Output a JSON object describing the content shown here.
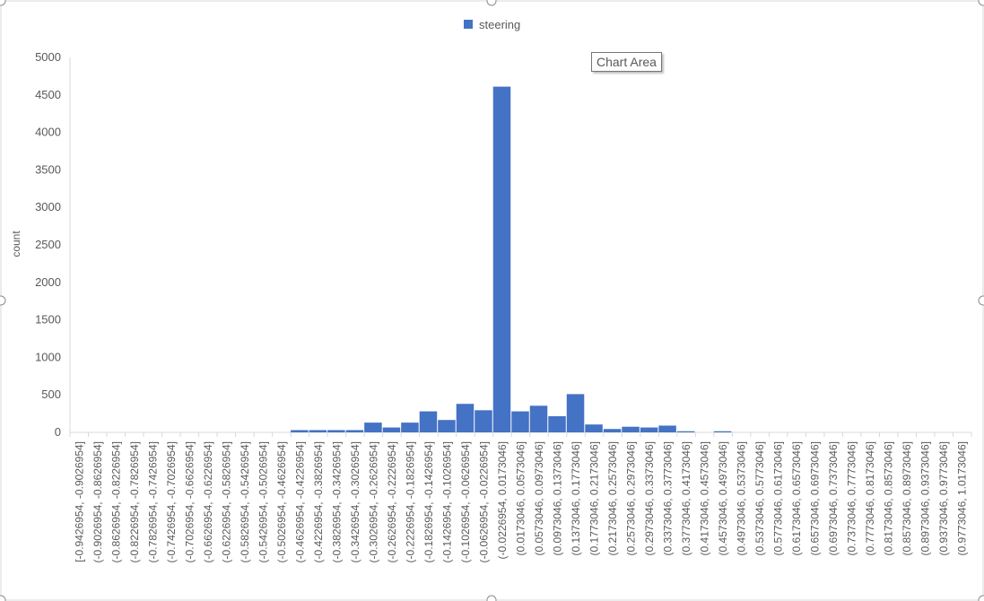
{
  "tooltip": "Chart Area",
  "colors": {
    "bar": "#4472C4",
    "axis": "#D9D9D9",
    "text": "#595959"
  },
  "chart_data": {
    "type": "bar",
    "xlabel": "",
    "ylabel": "count",
    "ylim": [
      0,
      5000
    ],
    "yticks": [
      0,
      500,
      1000,
      1500,
      2000,
      2500,
      3000,
      3500,
      4000,
      4500,
      5000
    ],
    "grid": false,
    "legend_position": "top",
    "categories": [
      "[-0.9426954, -0.9026954]",
      "(-0.9026954, -0.8626954]",
      "(-0.8626954, -0.8226954]",
      "(-0.8226954, -0.7826954]",
      "(-0.7826954, -0.7426954]",
      "(-0.7426954, -0.7026954]",
      "(-0.7026954, -0.6626954]",
      "(-0.6626954, -0.6226954]",
      "(-0.6226954, -0.5826954]",
      "(-0.5826954, -0.5426954]",
      "(-0.5426954, -0.5026954]",
      "(-0.5026954, -0.4626954]",
      "(-0.4626954, -0.4226954]",
      "(-0.4226954, -0.3826954]",
      "(-0.3826954, -0.3426954]",
      "(-0.3426954, -0.3026954]",
      "(-0.3026954, -0.2626954]",
      "(-0.2626954, -0.2226954]",
      "(-0.2226954, -0.1826954]",
      "(-0.1826954, -0.1426954]",
      "(-0.1426954, -0.1026954]",
      "(-0.1026954, -0.0626954]",
      "(-0.0626954, -0.0226954]",
      "(-0.0226954, 0.0173046]",
      "(0.0173046, 0.0573046]",
      "(0.0573046, 0.0973046]",
      "(0.0973046, 0.1373046]",
      "(0.1373046, 0.1773046]",
      "(0.1773046, 0.2173046]",
      "(0.2173046, 0.2573046]",
      "(0.2573046, 0.2973046]",
      "(0.2973046, 0.3373046]",
      "(0.3373046, 0.3773046]",
      "(0.3773046, 0.4173046]",
      "(0.4173046, 0.4573046]",
      "(0.4573046, 0.4973046]",
      "(0.4973046, 0.5373046]",
      "(0.5373046, 0.5773046]",
      "(0.5773046, 0.6173046]",
      "(0.6173046, 0.6573046]",
      "(0.6573046, 0.6973046]",
      "(0.6973046, 0.7373046]",
      "(0.7373046, 0.7773046]",
      "(0.7773046, 0.8173046]",
      "(0.8173046, 0.8573046]",
      "(0.8573046, 0.8973046]",
      "(0.8973046, 0.9373046]",
      "(0.9373046, 0.9773046]",
      "(0.9773046, 1.0173046]"
    ],
    "series": [
      {
        "name": "steering",
        "color": "#4472C4",
        "values": [
          0,
          0,
          0,
          0,
          0,
          0,
          0,
          0,
          0,
          0,
          0,
          0,
          30,
          30,
          30,
          30,
          130,
          65,
          130,
          280,
          165,
          380,
          295,
          4610,
          280,
          355,
          215,
          510,
          105,
          45,
          75,
          65,
          90,
          15,
          0,
          15,
          0,
          0,
          0,
          0,
          0,
          0,
          0,
          0,
          0,
          0,
          0,
          0,
          0
        ]
      }
    ]
  }
}
